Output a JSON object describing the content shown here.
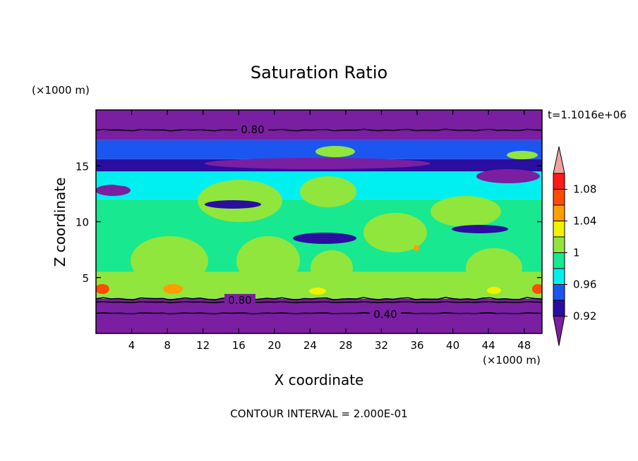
{
  "chart_data": {
    "type": "heatmap",
    "title": "Saturation Ratio",
    "xlabel": "X coordinate",
    "ylabel": "Z coordinate",
    "x_units": "(×1000 m)",
    "y_units": "(×1000 m)",
    "time_label": "t=1.1016e+06",
    "footer": "CONTOUR INTERVAL = 2.000E-01",
    "xlim": [
      0,
      50
    ],
    "ylim": [
      0,
      20
    ],
    "x_ticks": [
      "4",
      "8",
      "12",
      "16",
      "20",
      "24",
      "28",
      "32",
      "36",
      "40",
      "44",
      "48"
    ],
    "y_ticks": [
      "5",
      "10",
      "15"
    ],
    "colorbar": {
      "labels": [
        "1.08",
        "1.04",
        "1",
        "0.96",
        "0.92"
      ],
      "levels": [
        0.92,
        0.94,
        0.96,
        0.98,
        1.0,
        1.02,
        1.04,
        1.06,
        1.08
      ],
      "colors": [
        "#7a1fa2",
        "#2a0ea0",
        "#1c56f0",
        "#00f0f0",
        "#18e890",
        "#90e63c",
        "#f2f200",
        "#ff9e00",
        "#ff4c00",
        "#ff1a1a",
        "#f2a0a0"
      ]
    },
    "contour_labels": [
      "0.80",
      "0.80",
      "0.40"
    ],
    "bands": [
      {
        "z0": 0,
        "z1": 3.1,
        "level": 0
      },
      {
        "z0": 3.1,
        "z1": 5.5,
        "level": 5
      },
      {
        "z0": 5.5,
        "z1": 12.0,
        "level": 4
      },
      {
        "z0": 12.0,
        "z1": 14.5,
        "level": 3
      },
      {
        "z0": 14.5,
        "z1": 15.6,
        "level": 1
      },
      {
        "z0": 15.6,
        "z1": 17.3,
        "level": 2
      },
      {
        "z0": 17.3,
        "z1": 20,
        "level": 0
      }
    ]
  }
}
